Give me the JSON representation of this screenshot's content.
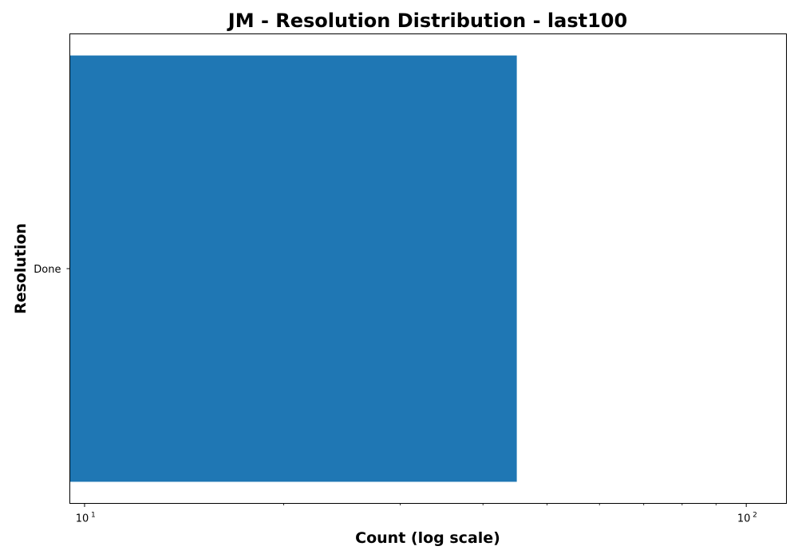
{
  "chart_data": {
    "type": "bar",
    "orientation": "horizontal",
    "title": "JM - Resolution Distribution - last100",
    "xlabel": "Count (log scale)",
    "ylabel": "Resolution",
    "xscale": "log",
    "xlim": [
      9.5,
      115
    ],
    "categories": [
      "Done"
    ],
    "values": [
      45
    ],
    "major_ticks": [
      {
        "value": 10,
        "base": "10",
        "exp": "1"
      },
      {
        "value": 100,
        "base": "10",
        "exp": "2"
      }
    ],
    "minor_ticks": [
      20,
      30,
      40,
      50,
      60,
      70,
      80,
      90
    ],
    "bar_color": "#1f77b4",
    "grid": false,
    "legend": "none"
  }
}
